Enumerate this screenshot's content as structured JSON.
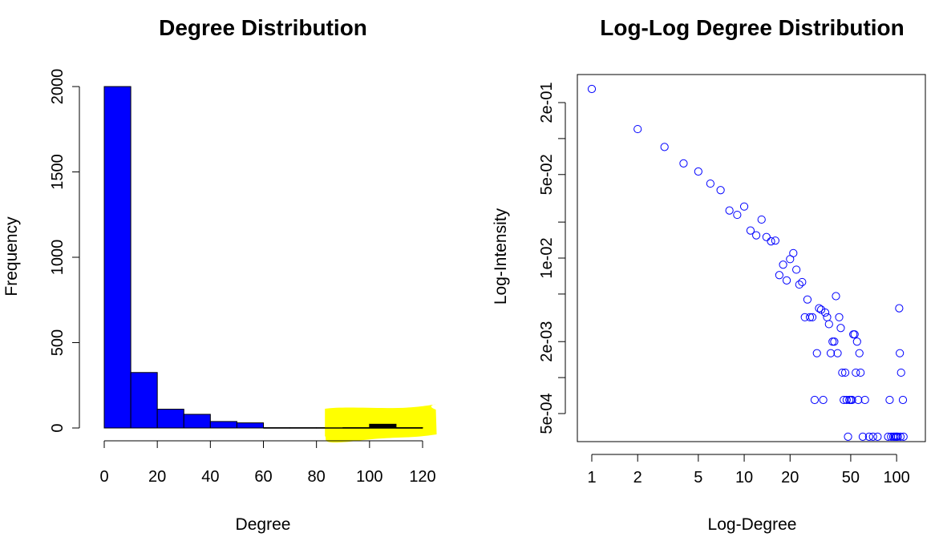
{
  "colors": {
    "bar_fill": "#0000ff",
    "highlighted_bar_fill": "#000000",
    "highlight_marker": "#ffff00",
    "point_stroke": "#0000ff",
    "axis": "#000000"
  },
  "chart_data": [
    {
      "type": "bar",
      "title": "Degree Distribution",
      "xlabel": "Degree",
      "ylabel": "Frequency",
      "bins": [
        {
          "start": 0,
          "end": 10,
          "value": 2000
        },
        {
          "start": 10,
          "end": 20,
          "value": 325
        },
        {
          "start": 20,
          "end": 30,
          "value": 110
        },
        {
          "start": 30,
          "end": 40,
          "value": 80
        },
        {
          "start": 40,
          "end": 50,
          "value": 38
        },
        {
          "start": 50,
          "end": 60,
          "value": 30
        },
        {
          "start": 60,
          "end": 70,
          "value": 2
        },
        {
          "start": 70,
          "end": 80,
          "value": 2
        },
        {
          "start": 80,
          "end": 90,
          "value": 2
        },
        {
          "start": 90,
          "end": 100,
          "value": 2
        },
        {
          "start": 100,
          "end": 110,
          "value": 22
        },
        {
          "start": 110,
          "end": 120,
          "value": 2
        }
      ],
      "xlim": [
        0,
        120
      ],
      "ylim": [
        0,
        2000
      ],
      "x_ticks": [
        "0",
        "20",
        "40",
        "60",
        "80",
        "100",
        "120"
      ],
      "y_ticks": [
        "0",
        "500",
        "1000",
        "1500",
        "2000"
      ],
      "highlight": {
        "color": "yellow",
        "x_range": [
          85,
          125
        ],
        "note": "yellow marker highlight over the tail bins"
      },
      "grid": false
    },
    {
      "type": "scatter",
      "title": "Log-Log Degree Distribution",
      "xlabel": "Log-Degree",
      "ylabel": "Log-Intensity",
      "x_scale": "log",
      "y_scale": "log",
      "marker": "open circle",
      "x_ticks": [
        "1",
        "2",
        "5",
        "10",
        "20",
        "50",
        "100"
      ],
      "y_ticks": [
        "5e-04",
        "2e-03",
        "1e-02",
        "5e-02",
        "2e-01"
      ],
      "y_tick_values": [
        0.0005,
        0.002,
        0.01,
        0.05,
        0.2
      ],
      "y_minor_tick_values": [
        0.001,
        0.005,
        0.02,
        0.1
      ],
      "xlim": [
        1,
        115
      ],
      "ylim": [
        0.0004,
        0.3
      ],
      "points": [
        [
          1,
          0.26
        ],
        [
          2,
          0.12
        ],
        [
          3,
          0.085
        ],
        [
          4,
          0.062
        ],
        [
          5,
          0.053
        ],
        [
          6,
          0.042
        ],
        [
          7,
          0.037
        ],
        [
          8,
          0.025
        ],
        [
          9,
          0.023
        ],
        [
          10,
          0.027
        ],
        [
          11,
          0.017
        ],
        [
          12,
          0.0155
        ],
        [
          13,
          0.021
        ],
        [
          14,
          0.015
        ],
        [
          15,
          0.0138
        ],
        [
          16,
          0.014
        ],
        [
          17,
          0.0072
        ],
        [
          18,
          0.0088
        ],
        [
          19,
          0.0065
        ],
        [
          20,
          0.0098
        ],
        [
          21,
          0.011
        ],
        [
          22,
          0.008
        ],
        [
          23,
          0.006
        ],
        [
          24,
          0.0063
        ],
        [
          25,
          0.0032
        ],
        [
          26,
          0.0045
        ],
        [
          27,
          0.0032
        ],
        [
          28,
          0.0032
        ],
        [
          29,
          0.00065
        ],
        [
          30,
          0.0016
        ],
        [
          31,
          0.0038
        ],
        [
          32,
          0.0037
        ],
        [
          33,
          0.00065
        ],
        [
          34,
          0.0035
        ],
        [
          35,
          0.0032
        ],
        [
          36,
          0.0028
        ],
        [
          37,
          0.0016
        ],
        [
          38,
          0.002
        ],
        [
          39,
          0.002
        ],
        [
          40,
          0.0048
        ],
        [
          41,
          0.0016
        ],
        [
          42,
          0.0032
        ],
        [
          43,
          0.0026
        ],
        [
          44,
          0.0011
        ],
        [
          45,
          0.00065
        ],
        [
          46,
          0.0011
        ],
        [
          47,
          0.00065
        ],
        [
          48,
          0.00032
        ],
        [
          49,
          0.00065
        ],
        [
          50,
          0.00065
        ],
        [
          51,
          0.00065
        ],
        [
          52,
          0.0023
        ],
        [
          53,
          0.0023
        ],
        [
          54,
          0.0011
        ],
        [
          55,
          0.002
        ],
        [
          56,
          0.00065
        ],
        [
          57,
          0.0016
        ],
        [
          58,
          0.0011
        ],
        [
          60,
          0.00032
        ],
        [
          62,
          0.00065
        ],
        [
          66,
          0.00032
        ],
        [
          70,
          0.00032
        ],
        [
          75,
          0.00032
        ],
        [
          88,
          0.00032
        ],
        [
          90,
          0.00065
        ],
        [
          92,
          0.00032
        ],
        [
          95,
          0.00032
        ],
        [
          97,
          0.00032
        ],
        [
          99,
          0.00032
        ],
        [
          100,
          0.00032
        ],
        [
          102,
          0.00032
        ],
        [
          104,
          0.0038
        ],
        [
          105,
          0.0016
        ],
        [
          106,
          0.00032
        ],
        [
          107,
          0.0011
        ],
        [
          110,
          0.00065
        ],
        [
          111,
          0.00032
        ]
      ],
      "grid": false
    }
  ]
}
